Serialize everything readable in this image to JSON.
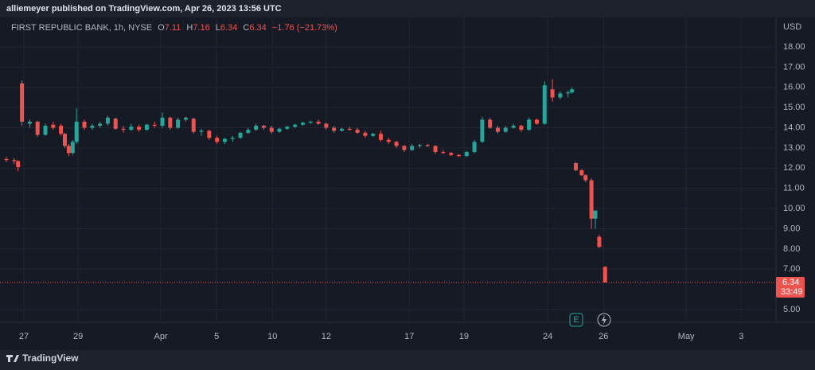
{
  "header": {
    "publisher": "alliemeyer published on TradingView.com, Apr 26, 2023 13:56 UTC"
  },
  "footer": {
    "brand": "TradingView"
  },
  "chart_data": {
    "type": "candlestick",
    "legend": {
      "symbol": "FIRST REPUBLIC BANK, 1h, NYSE",
      "o_label": "O",
      "open": 7.11,
      "h_label": "H",
      "high": 7.16,
      "l_label": "L",
      "low": 6.34,
      "c_label": "C",
      "close": 6.34,
      "change": "−1.76 (−21.73%)"
    },
    "currency": "USD",
    "last_price": 6.34,
    "last_price_label": "6.34",
    "countdown": "33:49",
    "earnings_marker": "E",
    "up_color": "#26a69a",
    "down_color": "#ef5350",
    "grid": true,
    "xlim": [
      0,
      196.3
    ],
    "ylim": [
      4.37,
      19.34
    ],
    "xticks": [
      {
        "value": 4.5,
        "label": "27"
      },
      {
        "value": 18.4,
        "label": "29"
      },
      {
        "value": 39.6,
        "label": "Apr"
      },
      {
        "value": 53.9,
        "label": "5"
      },
      {
        "value": 68.2,
        "label": "10"
      },
      {
        "value": 82.0,
        "label": "12"
      },
      {
        "value": 103.3,
        "label": "17"
      },
      {
        "value": 117.3,
        "label": "19"
      },
      {
        "value": 138.8,
        "label": "24"
      },
      {
        "value": 153.1,
        "label": "26"
      },
      {
        "value": 174.3,
        "label": "May"
      },
      {
        "value": 188.4,
        "label": "3"
      }
    ],
    "yticks": [
      {
        "value": 5,
        "label": "5.00"
      },
      {
        "value": 7,
        "label": "7.00"
      },
      {
        "value": 8,
        "label": "8.00"
      },
      {
        "value": 9,
        "label": "9.00"
      },
      {
        "value": 10,
        "label": "10.00"
      },
      {
        "value": 11,
        "label": "11.00"
      },
      {
        "value": 12,
        "label": "12.00"
      },
      {
        "value": 13,
        "label": "13.00"
      },
      {
        "value": 14,
        "label": "14.00"
      },
      {
        "value": 15,
        "label": "15.00"
      },
      {
        "value": 16,
        "label": "16.00"
      },
      {
        "value": 17,
        "label": "17.00"
      },
      {
        "value": 18,
        "label": "18.00"
      }
    ],
    "x": [
      0,
      2,
      3,
      4,
      6,
      8,
      10,
      12,
      14,
      15,
      16,
      17,
      18,
      20,
      22,
      24,
      26,
      28,
      30,
      32,
      34,
      36,
      38,
      40,
      42,
      44,
      46,
      48,
      50,
      52,
      54,
      56,
      58,
      60,
      62,
      64,
      66,
      68,
      70,
      72,
      74,
      76,
      78,
      80,
      82,
      84,
      86,
      88,
      90,
      92,
      94,
      96,
      98,
      100,
      102,
      104,
      106,
      108,
      110,
      112,
      114,
      116,
      118,
      120,
      122,
      124,
      126,
      128,
      130,
      132,
      134,
      136,
      138,
      140,
      142,
      144,
      145,
      146,
      147.5,
      148.5,
      150,
      151,
      152,
      153.5
    ],
    "open": [
      12.45,
      12.4,
      12.35,
      16.2,
      14.2,
      14.3,
      13.65,
      14.15,
      14.1,
      13.7,
      13.1,
      12.75,
      13.3,
      14.3,
      14.0,
      14.1,
      14.2,
      14.45,
      13.95,
      13.9,
      14.05,
      13.9,
      14.15,
      14.1,
      14.5,
      14.0,
      14.4,
      14.45,
      13.8,
      13.85,
      13.5,
      13.3,
      13.45,
      13.5,
      13.75,
      13.9,
      14.1,
      14.0,
      13.8,
      13.95,
      14.05,
      14.15,
      14.25,
      14.3,
      14.2,
      14.0,
      13.85,
      13.95,
      13.9,
      13.75,
      13.6,
      13.7,
      13.4,
      13.3,
      13.1,
      12.9,
      13.1,
      13.15,
      13.1,
      12.8,
      12.75,
      12.65,
      12.6,
      12.8,
      13.3,
      14.4,
      14.0,
      13.8,
      14.0,
      14.1,
      13.9,
      14.4,
      14.2,
      15.9,
      15.5,
      15.7,
      15.75,
      12.25,
      11.9,
      11.65,
      11.4,
      9.5,
      8.6,
      7.11
    ],
    "high": [
      12.55,
      12.5,
      12.4,
      16.35,
      14.4,
      14.35,
      14.2,
      14.3,
      14.2,
      13.75,
      13.2,
      13.4,
      14.95,
      14.4,
      14.2,
      14.3,
      14.6,
      14.5,
      14.1,
      14.2,
      14.15,
      14.2,
      14.3,
      14.75,
      14.55,
      14.5,
      14.55,
      14.5,
      13.95,
      13.9,
      13.6,
      13.5,
      13.6,
      13.8,
      14.0,
      14.2,
      14.15,
      14.1,
      14.0,
      14.1,
      14.2,
      14.3,
      14.35,
      14.4,
      14.25,
      14.1,
      14.0,
      14.05,
      14.0,
      13.85,
      13.75,
      13.85,
      13.5,
      13.35,
      13.15,
      13.2,
      13.2,
      13.2,
      13.15,
      12.9,
      12.8,
      12.7,
      12.85,
      13.4,
      14.55,
      14.5,
      14.1,
      14.1,
      14.2,
      14.15,
      14.5,
      14.45,
      16.3,
      16.4,
      15.8,
      15.85,
      16.0,
      12.3,
      11.95,
      11.7,
      11.5,
      9.9,
      8.7,
      7.16
    ],
    "low": [
      12.3,
      12.2,
      11.85,
      14.1,
      14.0,
      13.55,
      13.6,
      13.9,
      13.6,
      13.0,
      12.6,
      12.65,
      13.2,
      13.9,
      13.9,
      14.0,
      14.1,
      13.9,
      13.75,
      13.85,
      13.8,
      13.85,
      14.0,
      14.0,
      13.9,
      13.95,
      14.3,
      13.7,
      13.6,
      13.4,
      13.2,
      13.2,
      13.3,
      13.45,
      13.7,
      13.85,
      13.9,
      13.7,
      13.75,
      13.9,
      14.0,
      14.1,
      14.2,
      14.15,
      13.9,
      13.75,
      13.8,
      13.85,
      13.7,
      13.5,
      13.55,
      13.3,
      13.2,
      13.0,
      12.8,
      12.85,
      13.0,
      13.05,
      12.7,
      12.7,
      12.6,
      12.55,
      12.55,
      12.75,
      13.25,
      13.95,
      13.7,
      13.75,
      13.95,
      13.8,
      13.85,
      14.15,
      14.15,
      15.3,
      15.4,
      15.5,
      15.7,
      11.85,
      11.6,
      11.3,
      9.0,
      9.0,
      8.05,
      6.34
    ],
    "close": [
      12.4,
      12.35,
      12.05,
      14.3,
      14.3,
      13.65,
      14.1,
      14.0,
      13.7,
      13.1,
      12.75,
      13.3,
      14.3,
      14.0,
      14.1,
      14.2,
      14.5,
      13.95,
      13.9,
      14.05,
      13.9,
      14.15,
      14.1,
      14.5,
      14.0,
      14.4,
      14.5,
      13.8,
      13.85,
      13.5,
      13.3,
      13.45,
      13.5,
      13.75,
      13.9,
      14.1,
      14.0,
      13.8,
      13.95,
      14.05,
      14.15,
      14.25,
      14.3,
      14.2,
      14.0,
      13.85,
      13.95,
      13.9,
      13.75,
      13.6,
      13.7,
      13.4,
      13.3,
      13.1,
      12.9,
      13.1,
      13.15,
      13.1,
      12.8,
      12.75,
      12.65,
      12.6,
      12.8,
      13.3,
      14.4,
      14.0,
      13.8,
      14.0,
      14.1,
      13.9,
      14.4,
      14.2,
      16.1,
      15.5,
      15.7,
      15.75,
      15.9,
      11.9,
      11.65,
      11.4,
      9.5,
      9.9,
      8.1,
      6.34
    ]
  }
}
